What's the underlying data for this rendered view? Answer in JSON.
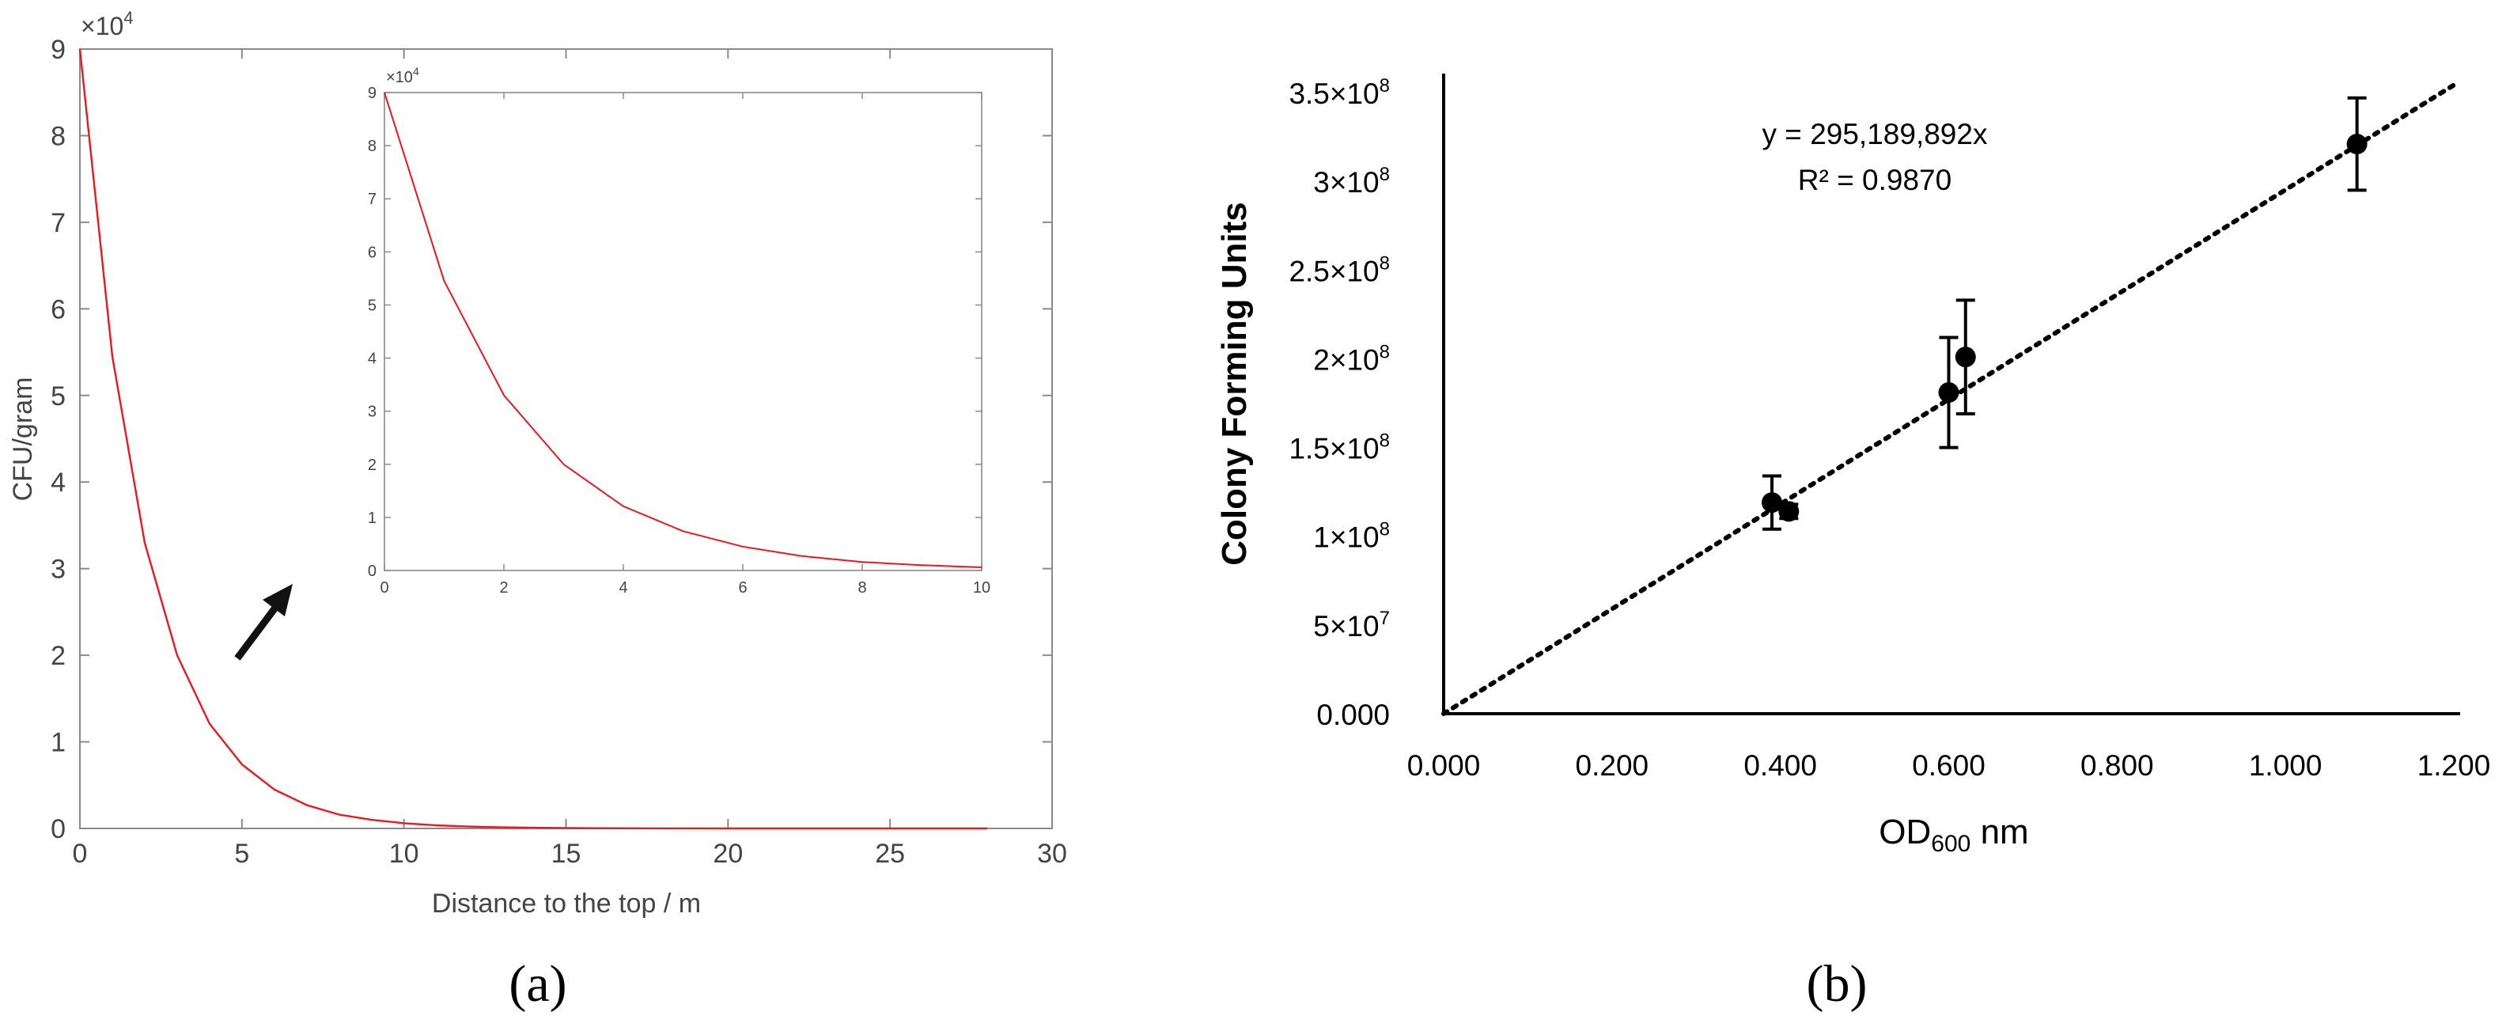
{
  "chart_data": [
    {
      "panel": "(a)",
      "type": "line",
      "xlabel": "Distance to the top / m",
      "ylabel": "CFU/gram",
      "y_multiplier_label": {
        "base": "×10",
        "exp": "4"
      },
      "xlim": [
        0,
        30
      ],
      "ylim": [
        0,
        9
      ],
      "xticks": [
        "0",
        "5",
        "10",
        "15",
        "20",
        "25",
        "30"
      ],
      "yticks": [
        "0",
        "1",
        "2",
        "3",
        "4",
        "5",
        "6",
        "7",
        "8",
        "9"
      ],
      "series": [
        {
          "color": "#e8191f",
          "x": [
            0,
            1,
            2,
            3,
            4,
            5,
            6,
            7,
            8,
            9,
            10,
            11,
            12,
            13,
            14,
            15,
            16,
            17,
            18,
            19,
            20,
            21,
            22,
            23,
            24,
            25,
            26,
            27,
            28
          ],
          "y": [
            9,
            5.45,
            3.3,
            2.0,
            1.21,
            0.74,
            0.45,
            0.27,
            0.16,
            0.1,
            0.06,
            0.036,
            0.022,
            0.013,
            0.008,
            0.005,
            0.003,
            0.002,
            0.001,
            0.0007,
            0.0004,
            0.0003,
            0.0002,
            0.0001,
            0.0001,
            0,
            0,
            0,
            0
          ]
        }
      ],
      "arrow_color": "#111111",
      "inset": {
        "type": "line",
        "xlim": [
          0,
          10
        ],
        "ylim": [
          0,
          9
        ],
        "xticks": [
          "0",
          "2",
          "4",
          "6",
          "8",
          "10"
        ],
        "yticks": [
          "0",
          "1",
          "2",
          "3",
          "4",
          "5",
          "6",
          "7",
          "8",
          "9"
        ],
        "y_multiplier_label": {
          "base": "×10",
          "exp": "4"
        },
        "series": [
          {
            "color": "#e8191f",
            "x": [
              0,
              1,
              2,
              3,
              4,
              5,
              6,
              7,
              8,
              9,
              10
            ],
            "y": [
              9,
              5.45,
              3.3,
              2.0,
              1.21,
              0.74,
              0.45,
              0.27,
              0.16,
              0.1,
              0.06
            ]
          }
        ]
      }
    },
    {
      "panel": "(b)",
      "type": "scatter",
      "xlabel_main": "OD",
      "xlabel_sub": "600",
      "xlabel_unit": " nm",
      "ylabel": "Colony Forming Units",
      "xlim": [
        0,
        1.2
      ],
      "ylim": [
        0,
        350000000
      ],
      "xticks": [
        {
          "value": 0.0,
          "label": "0.000"
        },
        {
          "value": 0.2,
          "label": "0.200"
        },
        {
          "value": 0.4,
          "label": "0.400"
        },
        {
          "value": 0.6,
          "label": "0.600"
        },
        {
          "value": 0.8,
          "label": "0.800"
        },
        {
          "value": 1.0,
          "label": "1.000"
        },
        {
          "value": 1.2,
          "label": "1.200"
        }
      ],
      "yticks": [
        {
          "value": 0,
          "label": "0.000",
          "exp": ""
        },
        {
          "value": 50000000,
          "label": "5×10",
          "exp": "7"
        },
        {
          "value": 100000000,
          "label": "1×10",
          "exp": "8"
        },
        {
          "value": 150000000,
          "label": "1.5×10",
          "exp": "8"
        },
        {
          "value": 200000000,
          "label": "2×10",
          "exp": "8"
        },
        {
          "value": 250000000,
          "label": "2.5×10",
          "exp": "8"
        },
        {
          "value": 300000000,
          "label": "3×10",
          "exp": "8"
        },
        {
          "value": 350000000,
          "label": "3.5×10",
          "exp": "8"
        }
      ],
      "points": [
        {
          "x": 0.39,
          "y": 119000000,
          "err": 15000000
        },
        {
          "x": 0.41,
          "y": 114000000,
          "err": 4000000
        },
        {
          "x": 0.6,
          "y": 181000000,
          "err": 31000000
        },
        {
          "x": 0.62,
          "y": 201000000,
          "err": 32000000
        },
        {
          "x": 1.085,
          "y": 321000000,
          "err": 26000000
        }
      ],
      "trendline": {
        "slope": 295189892,
        "x_range": [
          0,
          1.2
        ],
        "style": "dotted"
      },
      "equation": "y = 295,189,892x",
      "r2_label": "R² = 0.9870",
      "marker_color": "#000000"
    }
  ],
  "panel_labels": {
    "a": "(a)",
    "b": "(b)"
  }
}
